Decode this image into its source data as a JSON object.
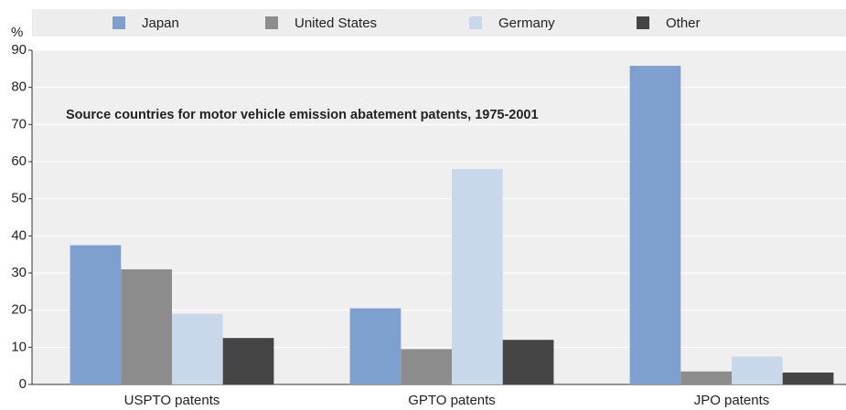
{
  "chart_data": {
    "type": "bar",
    "title": "Source countries for motor vehicle emission abatement patents, 1975-2001",
    "y_label": "%",
    "categories": [
      "USPTO patents",
      "GPTO patents",
      "JPO patents"
    ],
    "series": [
      {
        "name": "Japan",
        "color": "#7f9fcf",
        "values": [
          37.5,
          20.5,
          85.8
        ]
      },
      {
        "name": "United States",
        "color": "#8c8c8c",
        "values": [
          31,
          9.5,
          3.5
        ]
      },
      {
        "name": "Germany",
        "color": "#c9d7ea",
        "values": [
          19,
          58,
          7.5
        ]
      },
      {
        "name": "Other",
        "color": "#454545",
        "values": [
          12.5,
          12,
          3.2
        ]
      }
    ],
    "ylim": [
      0,
      90
    ],
    "yticks": [
      0,
      10,
      20,
      30,
      40,
      50,
      60,
      70,
      80,
      90
    ],
    "grid": true,
    "legend": "top"
  }
}
